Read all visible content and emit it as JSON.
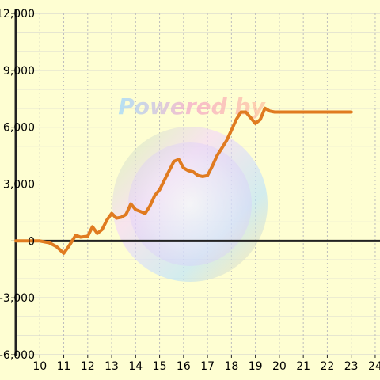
{
  "chart_data": {
    "type": "line",
    "title": "",
    "xlabel": "",
    "ylabel": "",
    "xlim": [
      9,
      24.2
    ],
    "ylim": [
      -6000,
      12000
    ],
    "x_ticks": [
      10,
      11,
      12,
      13,
      14,
      15,
      16,
      17,
      18,
      19,
      20,
      21,
      22,
      23,
      24
    ],
    "y_ticks": [
      12000,
      9000,
      6000,
      3000,
      0,
      -3000,
      -6000
    ],
    "x_tick_labels": [
      "10",
      "11",
      "12",
      "13",
      "14",
      "15",
      "16",
      "17",
      "18",
      "19",
      "20",
      "21",
      "22",
      "23",
      "24"
    ],
    "y_tick_labels": [
      "12,000",
      "9,000",
      "6,000",
      "3,000",
      "0",
      "-3,000",
      "-6,000"
    ],
    "grid": true,
    "legend": "none",
    "series": [
      {
        "color": "#e07b20",
        "x": [
          9.0,
          9.5,
          10.0,
          10.4,
          10.7,
          11.0,
          11.2,
          11.5,
          11.7,
          12.0,
          12.2,
          12.4,
          12.6,
          12.8,
          13.0,
          13.2,
          13.4,
          13.6,
          13.8,
          14.0,
          14.2,
          14.4,
          14.6,
          14.8,
          15.0,
          15.2,
          15.4,
          15.6,
          15.8,
          16.0,
          16.2,
          16.4,
          16.6,
          16.8,
          17.0,
          17.2,
          17.4,
          17.6,
          17.8,
          18.0,
          18.2,
          18.4,
          18.6,
          18.8,
          19.0,
          19.2,
          19.4,
          19.6,
          19.8,
          20.0,
          20.2,
          20.4,
          20.6,
          20.8,
          21.0,
          21.2,
          21.4,
          21.6,
          21.8,
          22.0,
          22.5,
          23.0
        ],
        "y": [
          0,
          0,
          0,
          -100,
          -300,
          -650,
          -300,
          300,
          200,
          250,
          750,
          400,
          600,
          1100,
          1450,
          1200,
          1250,
          1400,
          1950,
          1650,
          1550,
          1450,
          1850,
          2400,
          2700,
          3200,
          3700,
          4200,
          4300,
          3850,
          3700,
          3650,
          3450,
          3400,
          3450,
          3950,
          4500,
          4900,
          5300,
          5850,
          6400,
          6800,
          6800,
          6500,
          6200,
          6400,
          7000,
          6850,
          6800,
          6800,
          6800,
          6800,
          6800,
          6800,
          6800,
          6800,
          6800,
          6800,
          6800,
          6800,
          6800,
          6800
        ]
      }
    ],
    "axis_color": "#222222",
    "grid_color": "#cfcfcf",
    "background": "#fefed2"
  },
  "watermark": {
    "text": "Powered by"
  }
}
